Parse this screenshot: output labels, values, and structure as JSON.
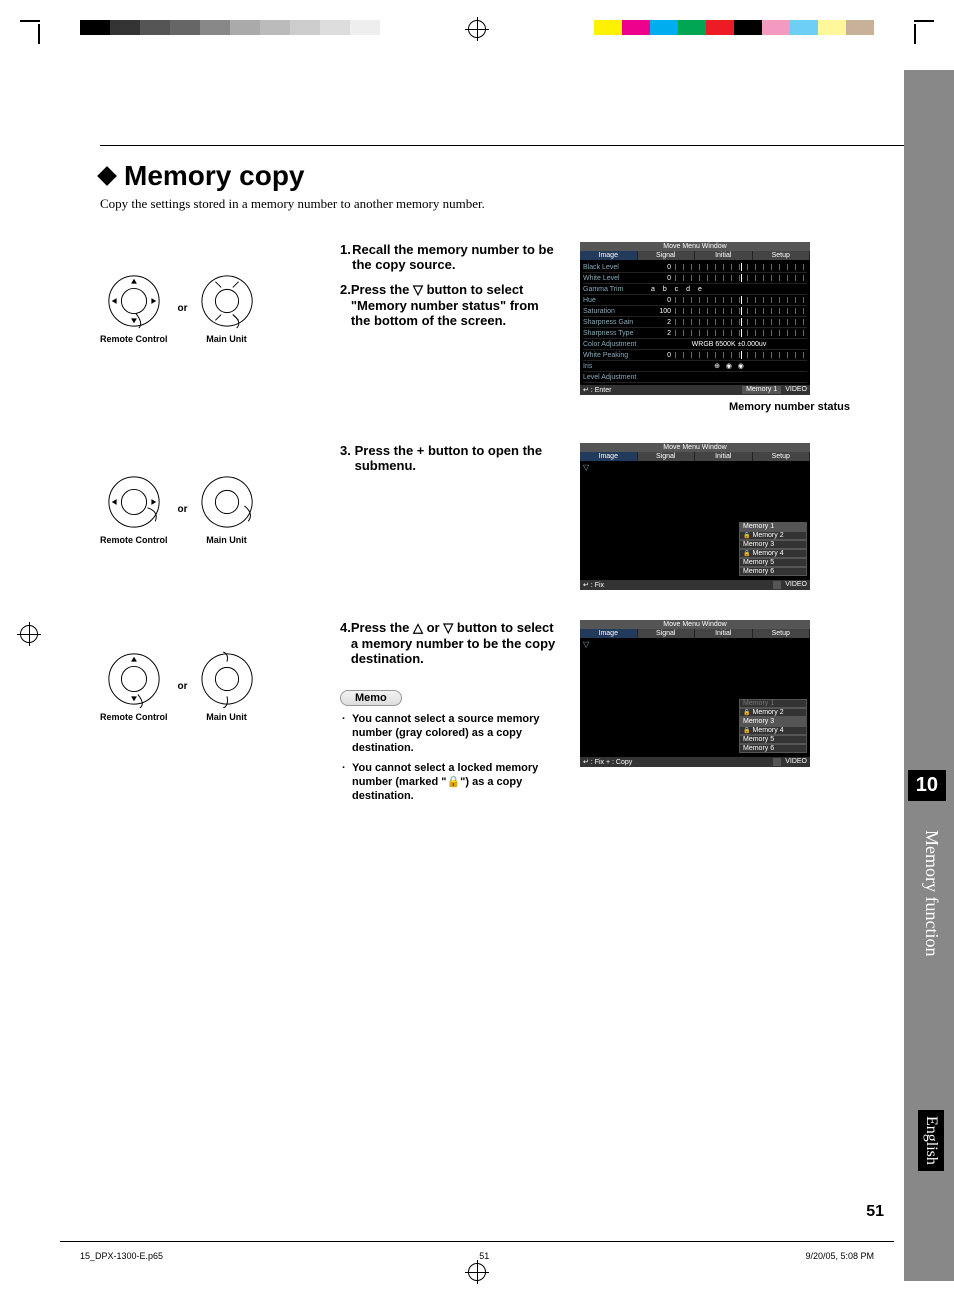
{
  "colorbar_left": [
    "#000",
    "#333",
    "#555",
    "#666",
    "#888",
    "#aaa",
    "#bbb",
    "#ccc",
    "#ddd",
    "#eee"
  ],
  "colorbar_right": [
    "#fff100",
    "#ec008c",
    "#00aeef",
    "#00a651",
    "#ed1c24",
    "#000000",
    "#f49ac1",
    "#6dcff6",
    "#fff799",
    "#c7b299"
  ],
  "heading": "Memory copy",
  "subtitle": "Copy the settings stored in a memory number to another memory number.",
  "or": "or",
  "ctrl_remote": "Remote Control",
  "ctrl_main": "Main Unit",
  "steps": {
    "s1": "Recall the memory number to be the copy source.",
    "s2": "Press the ▽ button to select \"Memory number status\" from the bottom of the screen.",
    "s3": "Press the + button to open the submenu.",
    "s4": "Press the △ or ▽ button to select a memory number to be the copy destination."
  },
  "memo_label": "Memo",
  "memo": [
    "You cannot select a source memory number (gray colored) as a copy destination.",
    "You cannot select a locked memory number (marked \"🔒\") as a copy destination."
  ],
  "caption1": "Memory number status",
  "menu": {
    "title": "Move Menu Window",
    "tabs": [
      "Image",
      "Signal",
      "Initial",
      "Setup"
    ],
    "rows": [
      {
        "k": "Black Level",
        "v": "0"
      },
      {
        "k": "White Level",
        "v": "0"
      },
      {
        "k": "Gamma Trim",
        "v": "",
        "gt": "a  b  c  d  e"
      },
      {
        "k": "Hue",
        "v": "0"
      },
      {
        "k": "Saturation",
        "v": "100"
      },
      {
        "k": "Sharpness Gain",
        "v": "2"
      },
      {
        "k": "Sharpness Type",
        "v": "2"
      },
      {
        "k": "Color Adjustment",
        "v": "",
        "ext": "WRGB     6500K ±0.000uv"
      },
      {
        "k": "White Peaking",
        "v": "0"
      },
      {
        "k": "Iris",
        "v": "",
        "icons": true
      },
      {
        "k": "Level Adjustment",
        "v": ""
      }
    ],
    "foot_enter": "↵ : Enter",
    "foot_fix": "↵ : Fix",
    "foot_copy": "↵ : Fix   + : Copy",
    "mem_label": "Memory 1",
    "video": "VIDEO"
  },
  "memlist2": [
    {
      "t": "Memory 1",
      "sel": true,
      "lock": false
    },
    {
      "t": "Memory 2",
      "sel": false,
      "lock": true
    },
    {
      "t": "Memory 3",
      "sel": false,
      "lock": false
    },
    {
      "t": "Memory 4",
      "sel": false,
      "lock": true
    },
    {
      "t": "Memory 5",
      "sel": false,
      "lock": false
    },
    {
      "t": "Memory 6",
      "sel": false,
      "lock": false
    }
  ],
  "memlist3": [
    {
      "t": "Memory 1",
      "sel": false,
      "lock": false,
      "gray": true
    },
    {
      "t": "Memory 2",
      "sel": false,
      "lock": true
    },
    {
      "t": "Memory 3",
      "sel": true,
      "lock": false
    },
    {
      "t": "Memory 4",
      "sel": false,
      "lock": true
    },
    {
      "t": "Memory 5",
      "sel": false,
      "lock": false
    },
    {
      "t": "Memory 6",
      "sel": false,
      "lock": false
    }
  ],
  "side": {
    "chapter": "10",
    "title": "Memory function",
    "lang": "English"
  },
  "page_number": "51",
  "footer": {
    "file": "15_DPX-1300-E.p65",
    "pg": "51",
    "date": "9/20/05, 5:08 PM"
  }
}
